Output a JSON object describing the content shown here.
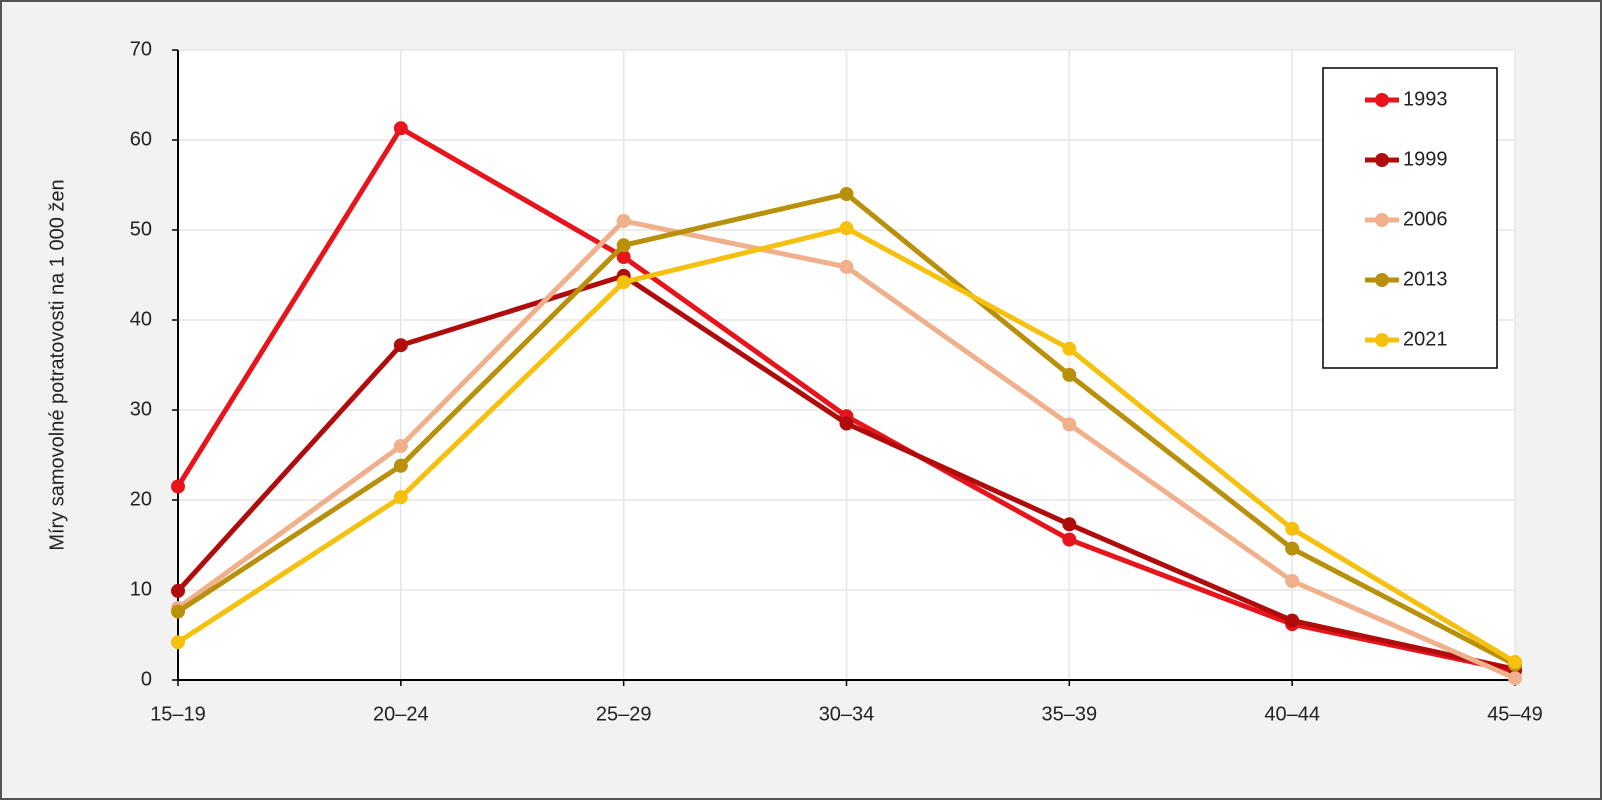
{
  "chart_data": {
    "type": "line",
    "y_label": "Míry samovolné potratovosti na 1 000 žen",
    "categories": [
      "15–19",
      "20–24",
      "25–29",
      "30–34",
      "35–39",
      "40–44",
      "45–49"
    ],
    "series": [
      {
        "name": "1993",
        "color": "#e8141c",
        "values": [
          21.5,
          61.3,
          47,
          29.3,
          15.6,
          6.2,
          1.0
        ]
      },
      {
        "name": "1999",
        "color": "#b00c0c",
        "values": [
          9.9,
          37.2,
          44.9,
          28.5,
          17.3,
          6.6,
          1.2
        ]
      },
      {
        "name": "2006",
        "color": "#f0b08c",
        "values": [
          8.0,
          26.0,
          51.0,
          45.9,
          28.4,
          11.0,
          0.2
        ]
      },
      {
        "name": "2013",
        "color": "#b8900c",
        "values": [
          7.6,
          23.8,
          48.3,
          54.0,
          33.9,
          14.6,
          1.7
        ]
      },
      {
        "name": "2021",
        "color": "#f5c10e",
        "values": [
          4.2,
          20.3,
          44.2,
          50.2,
          36.8,
          16.8,
          2.0
        ]
      }
    ],
    "ylim": [
      0,
      70
    ],
    "yticks": [
      0,
      10,
      20,
      30,
      40,
      50,
      60,
      70
    ],
    "grid": true,
    "legend": "upper right"
  }
}
